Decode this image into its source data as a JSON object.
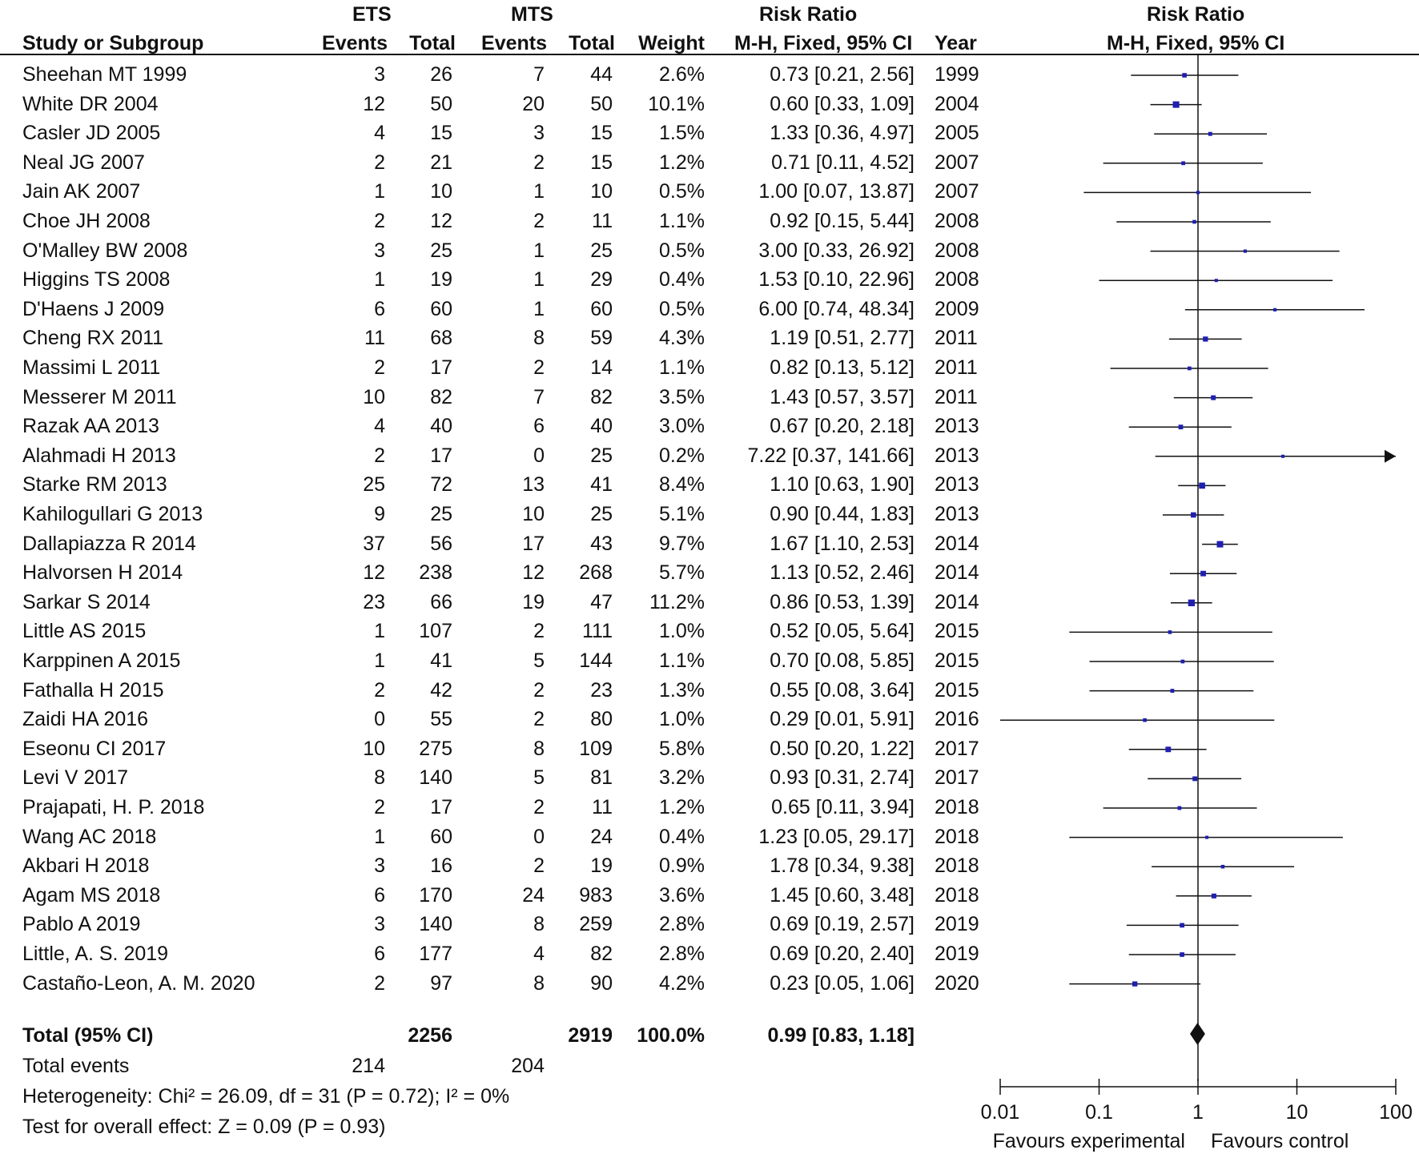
{
  "header": {
    "group1": "ETS",
    "group2": "MTS",
    "risk_ratio_col": "Risk Ratio",
    "risk_ratio_plot": "Risk Ratio",
    "study_col": "Study or Subgroup",
    "events1": "Events",
    "total1": "Total",
    "events2": "Events",
    "total2": "Total",
    "weight": "Weight",
    "method": "M-H, Fixed, 95% CI",
    "year": "Year",
    "method_plot": "M-H, Fixed, 95% CI"
  },
  "studies": [
    {
      "name": "Sheehan MT 1999",
      "e1": "3",
      "t1": "26",
      "e2": "7",
      "t2": "44",
      "weight": "2.6%",
      "ci": "0.73 [0.21, 2.56]",
      "year": "1999"
    },
    {
      "name": "White DR 2004",
      "e1": "12",
      "t1": "50",
      "e2": "20",
      "t2": "50",
      "weight": "10.1%",
      "ci": "0.60 [0.33, 1.09]",
      "year": "2004"
    },
    {
      "name": "Casler JD 2005",
      "e1": "4",
      "t1": "15",
      "e2": "3",
      "t2": "15",
      "weight": "1.5%",
      "ci": "1.33 [0.36, 4.97]",
      "year": "2005"
    },
    {
      "name": "Neal JG 2007",
      "e1": "2",
      "t1": "21",
      "e2": "2",
      "t2": "15",
      "weight": "1.2%",
      "ci": "0.71 [0.11, 4.52]",
      "year": "2007"
    },
    {
      "name": "Jain AK 2007",
      "e1": "1",
      "t1": "10",
      "e2": "1",
      "t2": "10",
      "weight": "0.5%",
      "ci": "1.00 [0.07, 13.87]",
      "year": "2007"
    },
    {
      "name": "Choe JH 2008",
      "e1": "2",
      "t1": "12",
      "e2": "2",
      "t2": "11",
      "weight": "1.1%",
      "ci": "0.92 [0.15, 5.44]",
      "year": "2008"
    },
    {
      "name": "O'Malley BW 2008",
      "e1": "3",
      "t1": "25",
      "e2": "1",
      "t2": "25",
      "weight": "0.5%",
      "ci": "3.00 [0.33, 26.92]",
      "year": "2008"
    },
    {
      "name": "Higgins TS 2008",
      "e1": "1",
      "t1": "19",
      "e2": "1",
      "t2": "29",
      "weight": "0.4%",
      "ci": "1.53 [0.10, 22.96]",
      "year": "2008"
    },
    {
      "name": "D'Haens J 2009",
      "e1": "6",
      "t1": "60",
      "e2": "1",
      "t2": "60",
      "weight": "0.5%",
      "ci": "6.00 [0.74, 48.34]",
      "year": "2009"
    },
    {
      "name": "Cheng RX 2011",
      "e1": "11",
      "t1": "68",
      "e2": "8",
      "t2": "59",
      "weight": "4.3%",
      "ci": "1.19 [0.51, 2.77]",
      "year": "2011"
    },
    {
      "name": "Massimi L 2011",
      "e1": "2",
      "t1": "17",
      "e2": "2",
      "t2": "14",
      "weight": "1.1%",
      "ci": "0.82 [0.13, 5.12]",
      "year": "2011"
    },
    {
      "name": "Messerer M 2011",
      "e1": "10",
      "t1": "82",
      "e2": "7",
      "t2": "82",
      "weight": "3.5%",
      "ci": "1.43 [0.57, 3.57]",
      "year": "2011"
    },
    {
      "name": "Razak AA 2013",
      "e1": "4",
      "t1": "40",
      "e2": "6",
      "t2": "40",
      "weight": "3.0%",
      "ci": "0.67 [0.20, 2.18]",
      "year": "2013"
    },
    {
      "name": "Alahmadi H 2013",
      "e1": "2",
      "t1": "17",
      "e2": "0",
      "t2": "25",
      "weight": "0.2%",
      "ci": "7.22 [0.37, 141.66]",
      "year": "2013"
    },
    {
      "name": "Starke RM 2013",
      "e1": "25",
      "t1": "72",
      "e2": "13",
      "t2": "41",
      "weight": "8.4%",
      "ci": "1.10 [0.63, 1.90]",
      "year": "2013"
    },
    {
      "name": "Kahilogullari G 2013",
      "e1": "9",
      "t1": "25",
      "e2": "10",
      "t2": "25",
      "weight": "5.1%",
      "ci": "0.90 [0.44, 1.83]",
      "year": "2013"
    },
    {
      "name": "Dallapiazza R 2014",
      "e1": "37",
      "t1": "56",
      "e2": "17",
      "t2": "43",
      "weight": "9.7%",
      "ci": "1.67 [1.10, 2.53]",
      "year": "2014"
    },
    {
      "name": "Halvorsen H 2014",
      "e1": "12",
      "t1": "238",
      "e2": "12",
      "t2": "268",
      "weight": "5.7%",
      "ci": "1.13 [0.52, 2.46]",
      "year": "2014"
    },
    {
      "name": "Sarkar S 2014",
      "e1": "23",
      "t1": "66",
      "e2": "19",
      "t2": "47",
      "weight": "11.2%",
      "ci": "0.86 [0.53, 1.39]",
      "year": "2014"
    },
    {
      "name": "Little AS 2015",
      "e1": "1",
      "t1": "107",
      "e2": "2",
      "t2": "111",
      "weight": "1.0%",
      "ci": "0.52 [0.05, 5.64]",
      "year": "2015"
    },
    {
      "name": "Karppinen A 2015",
      "e1": "1",
      "t1": "41",
      "e2": "5",
      "t2": "144",
      "weight": "1.1%",
      "ci": "0.70 [0.08, 5.85]",
      "year": "2015"
    },
    {
      "name": "Fathalla H 2015",
      "e1": "2",
      "t1": "42",
      "e2": "2",
      "t2": "23",
      "weight": "1.3%",
      "ci": "0.55 [0.08, 3.64]",
      "year": "2015"
    },
    {
      "name": "Zaidi HA 2016",
      "e1": "0",
      "t1": "55",
      "e2": "2",
      "t2": "80",
      "weight": "1.0%",
      "ci": "0.29 [0.01, 5.91]",
      "year": "2016"
    },
    {
      "name": "Eseonu CI 2017",
      "e1": "10",
      "t1": "275",
      "e2": "8",
      "t2": "109",
      "weight": "5.8%",
      "ci": "0.50 [0.20, 1.22]",
      "year": "2017"
    },
    {
      "name": "Levi V 2017",
      "e1": "8",
      "t1": "140",
      "e2": "5",
      "t2": "81",
      "weight": "3.2%",
      "ci": "0.93 [0.31, 2.74]",
      "year": "2017"
    },
    {
      "name": "Prajapati, H. P. 2018",
      "e1": "2",
      "t1": "17",
      "e2": "2",
      "t2": "11",
      "weight": "1.2%",
      "ci": "0.65 [0.11, 3.94]",
      "year": "2018"
    },
    {
      "name": "Wang AC 2018",
      "e1": "1",
      "t1": "60",
      "e2": "0",
      "t2": "24",
      "weight": "0.4%",
      "ci": "1.23 [0.05, 29.17]",
      "year": "2018"
    },
    {
      "name": "Akbari H 2018",
      "e1": "3",
      "t1": "16",
      "e2": "2",
      "t2": "19",
      "weight": "0.9%",
      "ci": "1.78 [0.34, 9.38]",
      "year": "2018"
    },
    {
      "name": "Agam MS 2018",
      "e1": "6",
      "t1": "170",
      "e2": "24",
      "t2": "983",
      "weight": "3.6%",
      "ci": "1.45 [0.60, 3.48]",
      "year": "2018"
    },
    {
      "name": "Pablo A 2019",
      "e1": "3",
      "t1": "140",
      "e2": "8",
      "t2": "259",
      "weight": "2.8%",
      "ci": "0.69 [0.19, 2.57]",
      "year": "2019"
    },
    {
      "name": "Little, A. S. 2019",
      "e1": "6",
      "t1": "177",
      "e2": "4",
      "t2": "82",
      "weight": "2.8%",
      "ci": "0.69 [0.20, 2.40]",
      "year": "2019"
    },
    {
      "name": "Castaño-Leon, A. M. 2020",
      "e1": "2",
      "t1": "97",
      "e2": "8",
      "t2": "90",
      "weight": "4.2%",
      "ci": "0.23 [0.05, 1.06]",
      "year": "2020"
    }
  ],
  "total": {
    "label": "Total (95% CI)",
    "t1": "2256",
    "t2": "2919",
    "weight": "100.0%",
    "ci": "0.99 [0.83, 1.18]"
  },
  "total_events": {
    "label": "Total events",
    "e1": "214",
    "e2": "204"
  },
  "heterogeneity": "Heterogeneity: Chi² = 26.09, df = 31 (P = 0.72); I² = 0%",
  "overall_effect": "Test for overall effect: Z = 0.09 (P = 0.93)",
  "axis": {
    "ticks": [
      "0.01",
      "0.1",
      "1",
      "10",
      "100"
    ],
    "favours_left": "Favours experimental",
    "favours_right": "Favours control"
  },
  "colors": {
    "marker": "#1f1fb0",
    "line": "#111111"
  },
  "chart_data": {
    "type": "forest",
    "title": "Risk Ratio",
    "xlabel": "M-H, Fixed, 95% CI",
    "x_scale": "log",
    "xlim": [
      0.01,
      100
    ],
    "reference_line": 1,
    "series": [
      {
        "rr": 0.73,
        "lo": 0.21,
        "hi": 2.56,
        "w": 2.6
      },
      {
        "rr": 0.6,
        "lo": 0.33,
        "hi": 1.09,
        "w": 10.1
      },
      {
        "rr": 1.33,
        "lo": 0.36,
        "hi": 4.97,
        "w": 1.5
      },
      {
        "rr": 0.71,
        "lo": 0.11,
        "hi": 4.52,
        "w": 1.2
      },
      {
        "rr": 1.0,
        "lo": 0.07,
        "hi": 13.87,
        "w": 0.5
      },
      {
        "rr": 0.92,
        "lo": 0.15,
        "hi": 5.44,
        "w": 1.1
      },
      {
        "rr": 3.0,
        "lo": 0.33,
        "hi": 26.92,
        "w": 0.5
      },
      {
        "rr": 1.53,
        "lo": 0.1,
        "hi": 22.96,
        "w": 0.4
      },
      {
        "rr": 6.0,
        "lo": 0.74,
        "hi": 48.34,
        "w": 0.5
      },
      {
        "rr": 1.19,
        "lo": 0.51,
        "hi": 2.77,
        "w": 4.3
      },
      {
        "rr": 0.82,
        "lo": 0.13,
        "hi": 5.12,
        "w": 1.1
      },
      {
        "rr": 1.43,
        "lo": 0.57,
        "hi": 3.57,
        "w": 3.5
      },
      {
        "rr": 0.67,
        "lo": 0.2,
        "hi": 2.18,
        "w": 3.0
      },
      {
        "rr": 7.22,
        "lo": 0.37,
        "hi": 141.66,
        "w": 0.2
      },
      {
        "rr": 1.1,
        "lo": 0.63,
        "hi": 1.9,
        "w": 8.4
      },
      {
        "rr": 0.9,
        "lo": 0.44,
        "hi": 1.83,
        "w": 5.1
      },
      {
        "rr": 1.67,
        "lo": 1.1,
        "hi": 2.53,
        "w": 9.7
      },
      {
        "rr": 1.13,
        "lo": 0.52,
        "hi": 2.46,
        "w": 5.7
      },
      {
        "rr": 0.86,
        "lo": 0.53,
        "hi": 1.39,
        "w": 11.2
      },
      {
        "rr": 0.52,
        "lo": 0.05,
        "hi": 5.64,
        "w": 1.0
      },
      {
        "rr": 0.7,
        "lo": 0.08,
        "hi": 5.85,
        "w": 1.1
      },
      {
        "rr": 0.55,
        "lo": 0.08,
        "hi": 3.64,
        "w": 1.3
      },
      {
        "rr": 0.29,
        "lo": 0.01,
        "hi": 5.91,
        "w": 1.0
      },
      {
        "rr": 0.5,
        "lo": 0.2,
        "hi": 1.22,
        "w": 5.8
      },
      {
        "rr": 0.93,
        "lo": 0.31,
        "hi": 2.74,
        "w": 3.2
      },
      {
        "rr": 0.65,
        "lo": 0.11,
        "hi": 3.94,
        "w": 1.2
      },
      {
        "rr": 1.23,
        "lo": 0.05,
        "hi": 29.17,
        "w": 0.4
      },
      {
        "rr": 1.78,
        "lo": 0.34,
        "hi": 9.38,
        "w": 0.9
      },
      {
        "rr": 1.45,
        "lo": 0.6,
        "hi": 3.48,
        "w": 3.6
      },
      {
        "rr": 0.69,
        "lo": 0.19,
        "hi": 2.57,
        "w": 2.8
      },
      {
        "rr": 0.69,
        "lo": 0.2,
        "hi": 2.4,
        "w": 2.8
      },
      {
        "rr": 0.23,
        "lo": 0.05,
        "hi": 1.06,
        "w": 4.2
      }
    ],
    "pooled": {
      "rr": 0.99,
      "lo": 0.83,
      "hi": 1.18
    }
  }
}
